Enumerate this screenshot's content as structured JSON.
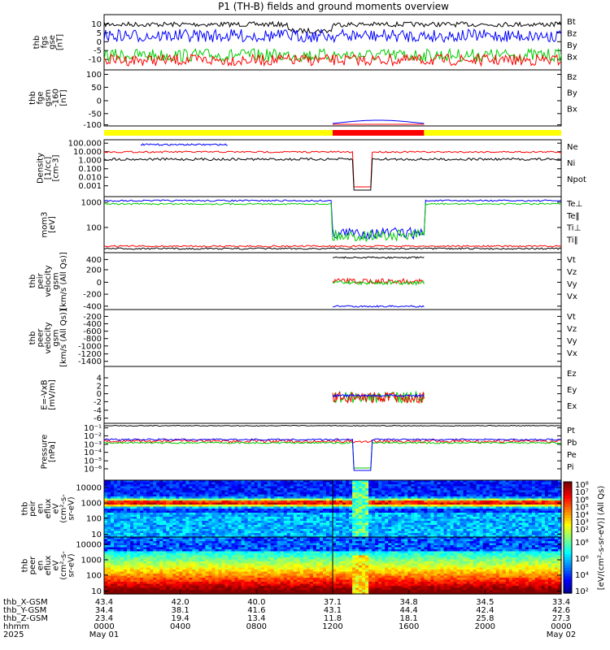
{
  "title": "P1 (TH-B) fields and ground moments overview",
  "colors": {
    "black": "#000000",
    "red": "#ff0000",
    "green": "#00cc00",
    "blue": "#0000ff",
    "yellow": "#ffff00",
    "orange": "#ffa500"
  },
  "chart_data": [
    {
      "type": "line",
      "ylabel": [
        "thb",
        "fgs",
        "gse",
        "[nT]"
      ],
      "yticks": [
        "10",
        "5",
        "0",
        "-5",
        "-10"
      ],
      "ylim": [
        -13,
        13
      ],
      "series": [
        {
          "name": "Bt",
          "color": "#000000",
          "trace": "bt"
        },
        {
          "name": "Bz",
          "color": "#ff0000",
          "trace": "bz"
        },
        {
          "name": "By",
          "color": "#00cc00",
          "trace": "by"
        },
        {
          "name": "Bx",
          "color": "#0000ff",
          "trace": "bx"
        }
      ]
    },
    {
      "type": "line",
      "ylabel": [
        "thb",
        "fge",
        "gsm",
        "-160",
        "[nT]"
      ],
      "yticks": [
        "100",
        "50",
        "0",
        "-50",
        "-100"
      ],
      "ylim": [
        -130,
        115
      ],
      "series": [
        {
          "name": "Bz",
          "color": "#ff0000"
        },
        {
          "name": "By",
          "color": "#00cc00"
        },
        {
          "name": "Bx",
          "color": "#0000ff"
        }
      ]
    },
    {
      "type": "line",
      "ylabel": [
        "Density",
        "[1/cc]",
        "[cm-3]"
      ],
      "yticks": [
        "100.000",
        "10.000",
        "1.000",
        "0.100",
        "0.010",
        "0.001"
      ],
      "series": [
        {
          "name": "Ne",
          "color": "#ff0000"
        },
        {
          "name": "Ni",
          "color": "#000000"
        },
        {
          "name": "Npot",
          "color": "#0000ff"
        }
      ]
    },
    {
      "type": "line",
      "ylabel": [
        "mom3",
        "[eV]"
      ],
      "yticks": [
        "1000",
        "100"
      ],
      "series": [
        {
          "name": "Te⊥",
          "color": "#ff0000"
        },
        {
          "name": "Te‖",
          "color": "#000000"
        },
        {
          "name": "Ti⊥",
          "color": "#0000ff"
        },
        {
          "name": "Ti‖",
          "color": "#00cc00"
        }
      ]
    },
    {
      "type": "line",
      "ylabel": [
        "thb",
        "peir",
        "velocity",
        "gsm",
        "[km/s (All Qs)]"
      ],
      "yticks": [
        "400",
        "200",
        "0",
        "-200",
        "-400"
      ],
      "series": [
        {
          "name": "Vt",
          "color": "#000000"
        },
        {
          "name": "Vz",
          "color": "#ff0000"
        },
        {
          "name": "Vy",
          "color": "#00cc00"
        },
        {
          "name": "Vx",
          "color": "#0000ff"
        }
      ]
    },
    {
      "type": "line",
      "ylabel": [
        "thb",
        "peer",
        "velocity",
        "gsm",
        "[km/s (All Qs)]"
      ],
      "yticks": [
        "-200",
        "-400",
        "-600",
        "-800",
        "-1000",
        "-1200",
        "-1400"
      ],
      "series": [
        {
          "name": "Vt",
          "color": "#000000"
        },
        {
          "name": "Vz",
          "color": "#ff0000"
        },
        {
          "name": "Vy",
          "color": "#00cc00"
        },
        {
          "name": "Vx",
          "color": "#0000ff"
        }
      ]
    },
    {
      "type": "line",
      "ylabel": [
        "E=-VxB",
        "[mV/m]"
      ],
      "yticks": [
        "4",
        "2",
        "0",
        "-2",
        "-4",
        "-6"
      ],
      "series": [
        {
          "name": "Ez",
          "color": "#ff0000"
        },
        {
          "name": "Ey",
          "color": "#00cc00"
        },
        {
          "name": "Ex",
          "color": "#0000ff"
        }
      ]
    },
    {
      "type": "line",
      "ylabel": [
        "Pressure",
        "[nPa]"
      ],
      "yticks": [
        "10⁻¹",
        "10⁻²",
        "10⁻³",
        "10⁻⁴",
        "10⁻⁵",
        "10⁻⁶"
      ],
      "series": [
        {
          "name": "Pt",
          "color": "#000000"
        },
        {
          "name": "Pb",
          "color": "#ff0000"
        },
        {
          "name": "Pe",
          "color": "#00cc00"
        },
        {
          "name": "Pi",
          "color": "#0000ff"
        }
      ]
    },
    {
      "type": "heatmap",
      "ylabel": [
        "thb",
        "peir",
        "en",
        "eflux",
        "eV",
        "(cm²-s-",
        "sr-eV)"
      ],
      "yticks": [
        "10000",
        "1000",
        "100",
        "10"
      ]
    },
    {
      "type": "heatmap",
      "ylabel": [
        "thb",
        "peer",
        "en",
        "eflux",
        "eV",
        "(cm²-s-",
        "sr-eV)"
      ],
      "yticks": [
        "10000",
        "1000",
        "100",
        "10"
      ]
    }
  ],
  "colorbar": {
    "label": "[eV/(cm²-s-sr-eV)] (All Qs)",
    "ticks1": [
      "10⁸",
      "10⁷",
      "10⁶",
      "10⁵",
      "10⁴",
      "10³",
      "10²"
    ],
    "ticks2": [
      "10⁸",
      "10⁶",
      "10⁴",
      "10²"
    ]
  },
  "status_bar": {
    "segments": [
      {
        "from": "0000",
        "to": "1200",
        "color": "#ffff00"
      },
      {
        "from": "1200",
        "to": "1700",
        "color": "#ff0000"
      },
      {
        "from": "1700",
        "to": "0000",
        "color": "#ffff00"
      }
    ]
  },
  "x_axis": {
    "rows": [
      {
        "label": "thb_X-GSM",
        "values": [
          "43.4",
          "42.0",
          "40.0",
          "37.1",
          "34.8",
          "34.5",
          "33.4"
        ]
      },
      {
        "label": "thb_Y-GSM",
        "values": [
          "34.4",
          "38.1",
          "41.6",
          "43.1",
          "44.4",
          "42.4",
          "42.6"
        ]
      },
      {
        "label": "thb_Z-GSM",
        "values": [
          "23.4",
          "19.4",
          "13.4",
          "11.8",
          "18.1",
          "25.8",
          "27.3"
        ]
      },
      {
        "label": "hhmm",
        "values": [
          "0000",
          "0400",
          "0800",
          "1200",
          "1600",
          "2000",
          "0000"
        ]
      }
    ],
    "year": "2025",
    "start_date": "May 01",
    "end_date": "May 02"
  }
}
